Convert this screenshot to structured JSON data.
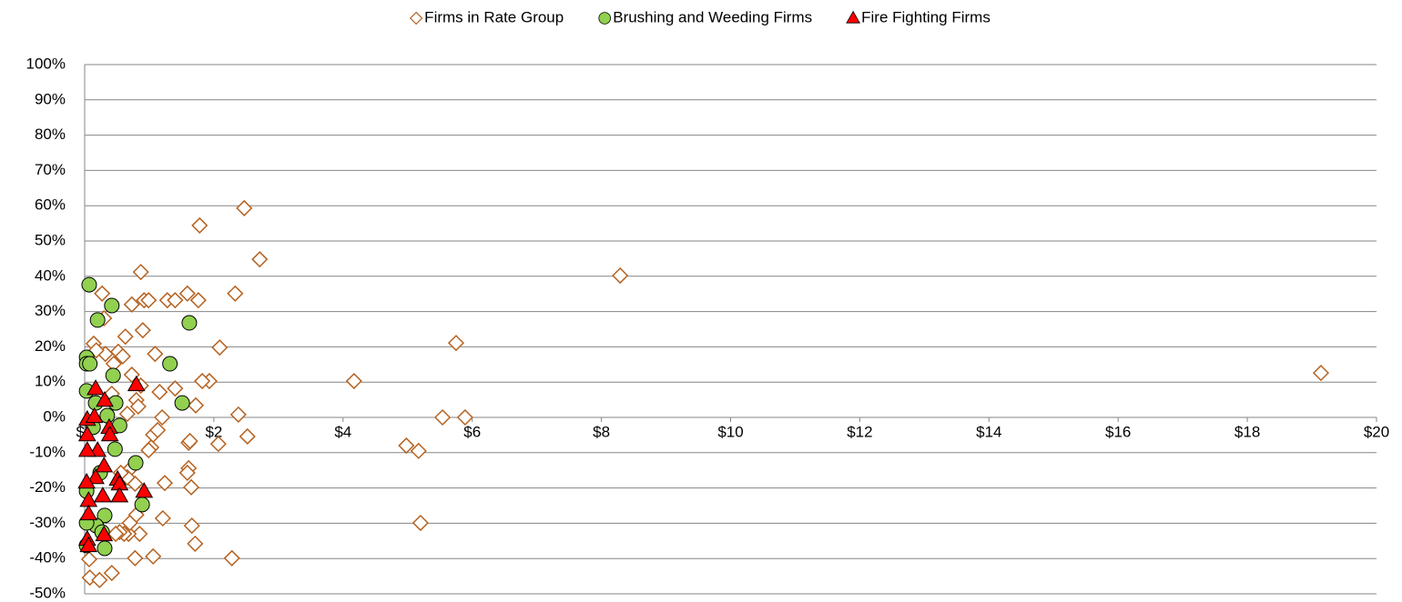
{
  "chart_data": {
    "type": "scatter",
    "legend": "top",
    "grid": true,
    "xlim": [
      0,
      20
    ],
    "xticks": [
      {
        "value": 0,
        "label": "$0"
      },
      {
        "value": 2,
        "label": "$2"
      },
      {
        "value": 4,
        "label": "$4"
      },
      {
        "value": 6,
        "label": "$6"
      },
      {
        "value": 8,
        "label": "$8"
      },
      {
        "value": 10,
        "label": "$10"
      },
      {
        "value": 12,
        "label": "$12"
      },
      {
        "value": 14,
        "label": "$14"
      },
      {
        "value": 16,
        "label": "$16"
      },
      {
        "value": 18,
        "label": "$18"
      },
      {
        "value": 20,
        "label": "$20"
      }
    ],
    "ylim": [
      -50,
      100
    ],
    "yticks": [
      {
        "value": -50,
        "label": "-50%"
      },
      {
        "value": -40,
        "label": "-40%"
      },
      {
        "value": -30,
        "label": "-30%"
      },
      {
        "value": -20,
        "label": "-20%"
      },
      {
        "value": -10,
        "label": "-10%"
      },
      {
        "value": 0,
        "label": "0%"
      },
      {
        "value": 10,
        "label": "10%"
      },
      {
        "value": 20,
        "label": "20%"
      },
      {
        "value": 30,
        "label": "30%"
      },
      {
        "value": 40,
        "label": "40%"
      },
      {
        "value": 50,
        "label": "50%"
      },
      {
        "value": 60,
        "label": "60%"
      },
      {
        "value": 70,
        "label": "70%"
      },
      {
        "value": 80,
        "label": "80%"
      },
      {
        "value": 90,
        "label": "90%"
      },
      {
        "value": 100,
        "label": "100%"
      }
    ],
    "series": [
      {
        "name": "Firms in Rate Group",
        "color": "#b5611f",
        "marker": "diamond",
        "x": [
          19.14,
          8.29,
          2.47,
          2.71,
          1.78,
          2.33,
          1.59,
          1.76,
          1.28,
          1.4,
          0.87,
          0.92,
          0.99,
          0.73,
          0.27,
          2.09,
          5.75,
          4.17,
          1.93,
          1.82,
          1.72,
          1.09,
          0.9,
          0.52,
          0.59,
          0.63,
          0.14,
          1.16,
          1.4,
          1.2,
          2.38,
          5.54,
          5.89,
          2.52,
          4.98,
          5.17,
          5.2,
          2.07,
          1.61,
          1.63,
          1.61,
          1.59,
          1.65,
          1.66,
          1.71,
          2.28,
          1.06,
          0.78,
          1.21,
          1.24,
          1.03,
          1.06,
          1.13,
          0.87,
          0.8,
          0.83,
          0.66,
          0.73,
          0.45,
          0.32,
          0.42,
          0.18,
          0.07,
          0.08,
          0.23,
          0.42,
          0.78,
          0.85,
          0.68,
          0.61,
          0.54,
          0.48,
          0.7,
          0.8,
          0.69,
          0.66,
          0.56,
          0.99,
          0.3
        ],
        "values": [
          12.6,
          40.2,
          59.3,
          44.8,
          54.4,
          35.1,
          35.1,
          33.2,
          33.2,
          33.2,
          41.2,
          33.2,
          33.2,
          32,
          35.1,
          19.8,
          21.1,
          10.3,
          10.3,
          10.3,
          3.4,
          18,
          24.7,
          18.6,
          17.3,
          22.9,
          20.9,
          7.2,
          8.2,
          0,
          0.8,
          0,
          0,
          -5.4,
          -8,
          -9.5,
          -29.9,
          -7.5,
          -7.2,
          -6.7,
          -14.4,
          -15.7,
          -19.8,
          -30.7,
          -35.8,
          -39.9,
          -39.4,
          -39.9,
          -28.6,
          -18.6,
          -8.5,
          -4.9,
          -3.6,
          9,
          4.9,
          3.1,
          1,
          12.1,
          15.2,
          18,
          6.7,
          19,
          -40.2,
          -45.4,
          -46.1,
          -44.1,
          -18.8,
          -33,
          -33,
          -33,
          -32.5,
          -33,
          -29.9,
          -27.6,
          -14.9,
          -17,
          -15.7,
          -9.3,
          28.1
        ]
      },
      {
        "name": "Brushing and Weeding Firms",
        "color": "#92d050",
        "marker": "circle",
        "x": [
          0.07,
          0.42,
          0.2,
          1.62,
          1.32,
          1.51,
          0.03,
          0.03,
          0.08,
          0.44,
          0.03,
          0.17,
          0.48,
          0.54,
          0.47,
          0.79,
          0.89,
          0.31,
          0.18,
          0.31,
          0.03,
          0.03,
          0.03,
          0.35,
          0.13,
          0.24,
          0.27
        ],
        "values": [
          37.6,
          31.7,
          27.6,
          26.8,
          15.2,
          4.1,
          17,
          15.2,
          15.2,
          11.9,
          7.5,
          4.1,
          4.1,
          -2.3,
          -9,
          -12.9,
          -24.7,
          -27.8,
          -30.7,
          -37.1,
          -29.9,
          -36.3,
          -20.9,
          0.5,
          -2.8,
          -15.7,
          -32.5
        ]
      },
      {
        "name": "Fire Fighting Firms",
        "color": "#ff0000",
        "marker": "triangle",
        "x": [
          0.8,
          0.17,
          0.31,
          0.04,
          0.04,
          0.38,
          0.39,
          0.15,
          0.2,
          0.04,
          0.3,
          0.51,
          0.54,
          0.54,
          0.92,
          0.28,
          0.06,
          0.06,
          0.17,
          0.3,
          0.04,
          0.06,
          0.03
        ],
        "values": [
          9.3,
          8.2,
          4.9,
          -0.5,
          -4.9,
          -2.8,
          -4.9,
          0.3,
          -9.3,
          -9.3,
          -13.7,
          -17.5,
          -18.8,
          -22.2,
          -20.9,
          -22.2,
          -23.5,
          -27.3,
          -17,
          -33.2,
          -34.5,
          -36.3,
          -18.3
        ]
      }
    ]
  }
}
